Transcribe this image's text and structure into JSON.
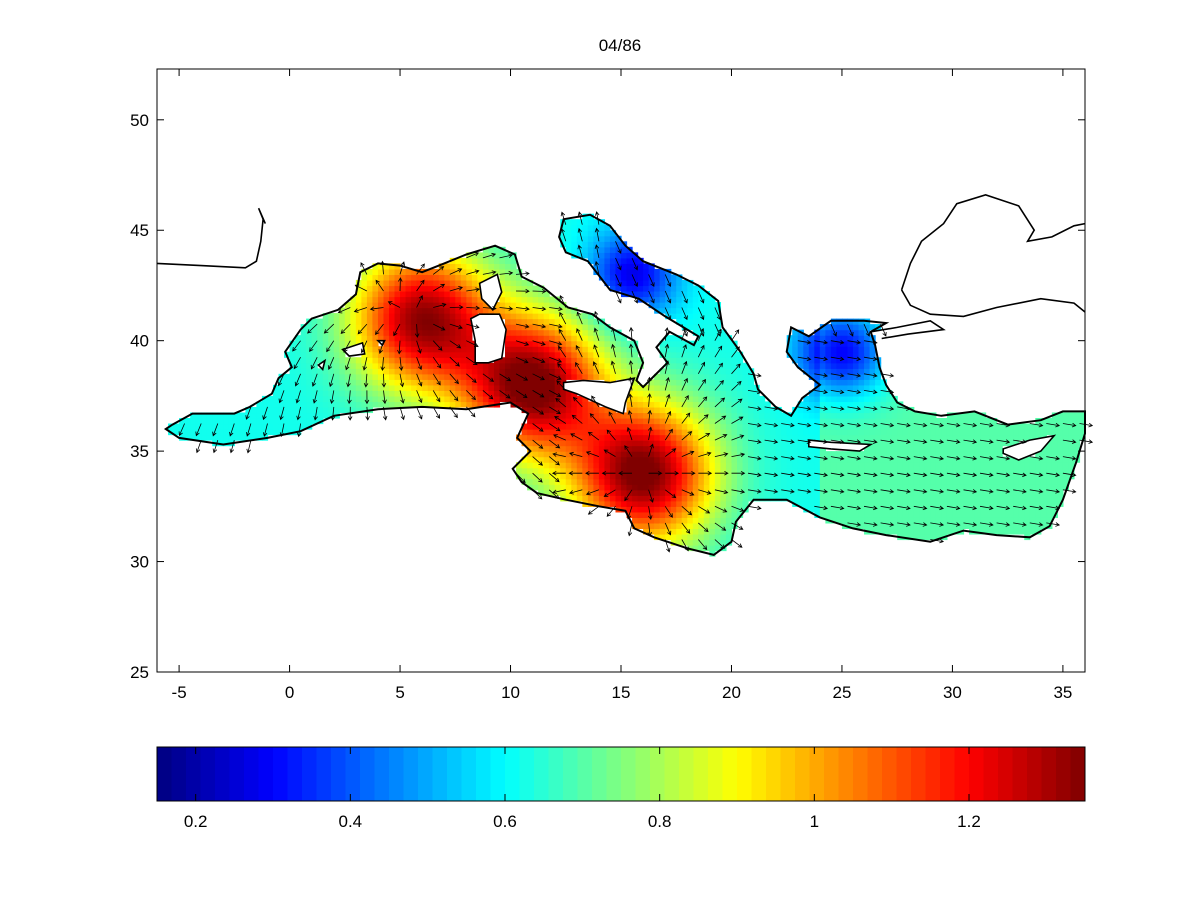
{
  "title": "04/86",
  "chart_data": {
    "type": "heatmap",
    "title": "04/86",
    "xlabel": "",
    "ylabel": "",
    "xlim": [
      -6,
      36
    ],
    "ylim": [
      25,
      52.3
    ],
    "x_ticks": [
      -5,
      0,
      5,
      10,
      15,
      20,
      25,
      30,
      35
    ],
    "y_ticks": [
      25,
      30,
      35,
      40,
      45,
      50
    ],
    "x_tick_labels": [
      "-5",
      "0",
      "5",
      "10",
      "15",
      "20",
      "25",
      "30",
      "35"
    ],
    "y_tick_labels": [
      "25",
      "30",
      "35",
      "40",
      "45",
      "50"
    ],
    "colormap": "jet",
    "clim": [
      0.15,
      1.35
    ],
    "colorbar_ticks": [
      0.2,
      0.4,
      0.6,
      0.8,
      1.0,
      1.2
    ],
    "colorbar_tick_labels": [
      "0.2",
      "0.4",
      "0.6",
      "0.8",
      "1",
      "1.2"
    ],
    "colorbar_location": "bottom",
    "overlay": "vector-arrows",
    "maxima": [
      {
        "lon": 6.0,
        "lat": 41.0,
        "value": 1.3
      },
      {
        "lon": 11.0,
        "lat": 38.0,
        "value": 1.35
      },
      {
        "lon": 16.0,
        "lat": 34.0,
        "value": 1.35
      }
    ],
    "minima": [
      {
        "lon": 15.5,
        "lat": 43.0,
        "value": 0.35
      },
      {
        "lon": 25.0,
        "lat": 39.5,
        "value": 0.3
      }
    ]
  }
}
